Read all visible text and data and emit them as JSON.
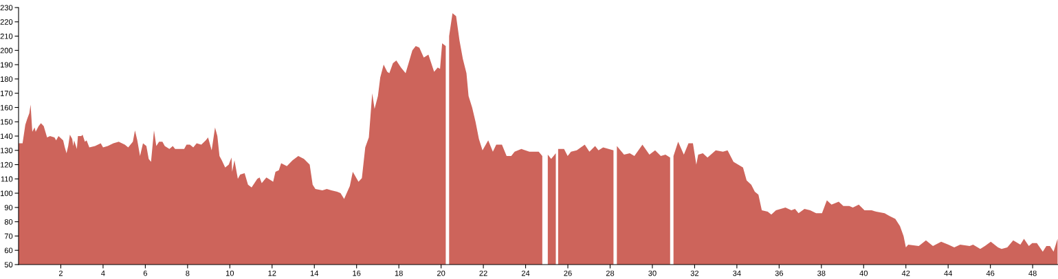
{
  "chart_data": {
    "type": "area",
    "color": "#cd645b",
    "x": [
      0,
      0.19,
      0.32,
      0.41,
      0.51,
      0.57,
      0.65,
      0.76,
      0.81,
      0.95,
      1.06,
      1.19,
      1.35,
      1.49,
      1.7,
      1.78,
      1.89,
      2.11,
      2.19,
      2.27,
      2.35,
      2.43,
      2.54,
      2.59,
      2.63,
      2.76,
      2.81,
      2.97,
      3.03,
      3.14,
      3.22,
      3.35,
      3.62,
      3.89,
      4.0,
      4.22,
      4.49,
      4.74,
      5.03,
      5.19,
      5.41,
      5.51,
      5.62,
      5.75,
      5.89,
      6.05,
      6.16,
      6.27,
      6.41,
      6.52,
      6.65,
      6.81,
      6.92,
      7.14,
      7.3,
      7.41,
      7.62,
      7.84,
      7.95,
      8.11,
      8.27,
      8.43,
      8.65,
      8.86,
      8.97,
      9.14,
      9.3,
      9.41,
      9.51,
      9.62,
      9.78,
      9.95,
      10.08,
      10.11,
      10.22,
      10.38,
      10.49,
      10.7,
      10.86,
      11.03,
      11.3,
      11.41,
      11.51,
      11.73,
      11.95,
      12.05,
      12.16,
      12.32,
      12.43,
      12.7,
      12.97,
      13.24,
      13.51,
      13.78,
      13.92,
      14.05,
      14.38,
      14.59,
      14.81,
      15.08,
      15.24,
      15.41,
      15.68,
      15.82,
      16.09,
      16.25,
      16.41,
      16.58,
      16.74,
      16.85,
      17.01,
      17.12,
      17.28,
      17.45,
      17.55,
      17.72,
      17.88,
      18.1,
      18.32,
      18.48,
      18.64,
      18.8,
      18.97,
      19.18,
      19.4,
      19.67,
      19.84,
      19.95,
      20.05,
      20.22,
      20.29,
      20.38,
      20.54,
      20.71,
      20.87,
      21.03,
      21.2,
      21.3,
      21.47,
      21.63,
      21.79,
      21.96,
      22.23,
      22.45,
      22.61,
      22.88,
      23.1,
      23.32,
      23.48,
      23.8,
      24.18,
      24.62,
      24.79,
      24.97,
      25.05,
      25.21,
      25.43,
      25.5,
      25.54,
      25.82,
      25.99,
      26.15,
      26.42,
      26.8,
      27.02,
      27.29,
      27.45,
      27.67,
      28.16,
      28.24,
      28.32,
      28.66,
      28.93,
      29.15,
      29.53,
      29.86,
      30.13,
      30.4,
      30.62,
      30.84,
      30.92,
      31.0,
      31.22,
      31.49,
      31.71,
      31.92,
      32.08,
      32.17,
      32.39,
      32.61,
      33.0,
      33.34,
      33.56,
      33.84,
      34.29,
      34.46,
      34.68,
      34.85,
      35.02,
      35.18,
      35.46,
      35.63,
      35.85,
      36.3,
      36.58,
      36.75,
      36.92,
      37.2,
      37.47,
      37.75,
      38.03,
      38.26,
      38.48,
      38.82,
      39.04,
      39.32,
      39.49,
      39.77,
      40.04,
      40.38,
      40.6,
      40.99,
      41.22,
      41.5,
      41.72,
      41.89,
      42.0,
      42.11,
      42.61,
      42.95,
      43.28,
      43.67,
      44.01,
      44.29,
      44.57,
      45.02,
      45.18,
      45.52,
      45.74,
      46.02,
      46.36,
      46.53,
      46.8,
      47.08,
      47.42,
      47.59,
      47.82,
      47.98,
      48.2,
      48.48,
      48.65,
      48.82,
      48.99,
      49.18
    ],
    "values": [
      135,
      135,
      148,
      152,
      156,
      162,
      143,
      146,
      143,
      147,
      149,
      147,
      139,
      140,
      139,
      137,
      140,
      137,
      132,
      128,
      133,
      141,
      138,
      133,
      137,
      131,
      140,
      140,
      141,
      136,
      137,
      132,
      133,
      135,
      132,
      133,
      135,
      136,
      134,
      132,
      136,
      144,
      137,
      126,
      135,
      133,
      124,
      122,
      144,
      133,
      136,
      136,
      133,
      131,
      133,
      131,
      131,
      131,
      134,
      134,
      132,
      135,
      134,
      137,
      139,
      130,
      146,
      140,
      126,
      123,
      118,
      120,
      125,
      115,
      123,
      110,
      113,
      114,
      106,
      104,
      110,
      111,
      107,
      111,
      109,
      108,
      115,
      116,
      121,
      119,
      123,
      126,
      124,
      120,
      106,
      103,
      102,
      103,
      102,
      101,
      100,
      96,
      105,
      115,
      108,
      110.5,
      132,
      139,
      170,
      159,
      168,
      181,
      190,
      185,
      184,
      191,
      193,
      188,
      184,
      192,
      200,
      203,
      202,
      195,
      197,
      185,
      188,
      187,
      205,
      203,
      null,
      210,
      226,
      224,
      207,
      194,
      184,
      168,
      160,
      150,
      138,
      130,
      137,
      129,
      134,
      134,
      126,
      126,
      129,
      131,
      129,
      129,
      126,
      null,
      127,
      124,
      128,
      null,
      131,
      131,
      126,
      129,
      130,
      134,
      129,
      133,
      130,
      132,
      130,
      null,
      133,
      127,
      128,
      126,
      134,
      127,
      130,
      126,
      127,
      125,
      null,
      126,
      136,
      127,
      135,
      135,
      120,
      127,
      128,
      125,
      130,
      129,
      130,
      122,
      118,
      109,
      106,
      101,
      99,
      88,
      87,
      85,
      88,
      90,
      88,
      89,
      86,
      89,
      88,
      86,
      86,
      95,
      92,
      94,
      91,
      91,
      90,
      92,
      88,
      88,
      87,
      86,
      84,
      82,
      77,
      70,
      62,
      64,
      63,
      67,
      63,
      66,
      64,
      62,
      64,
      63,
      64,
      61,
      63,
      66,
      62,
      61,
      62,
      67,
      64,
      68,
      63,
      65,
      65,
      59,
      63,
      63,
      59,
      68
    ],
    "xlim": [
      0,
      49.2
    ],
    "xticks": [
      2,
      4,
      6,
      8,
      10,
      12,
      14,
      16,
      18,
      20,
      22,
      24,
      26,
      28,
      30,
      32,
      34,
      36,
      38,
      40,
      42,
      44,
      46,
      48
    ],
    "ylim": [
      50,
      230
    ],
    "yticks": [
      50,
      60,
      70,
      80,
      90,
      100,
      110,
      120,
      130,
      140,
      150,
      160,
      170,
      180,
      190,
      200,
      210,
      220,
      230
    ],
    "grid": false,
    "legend": false
  }
}
